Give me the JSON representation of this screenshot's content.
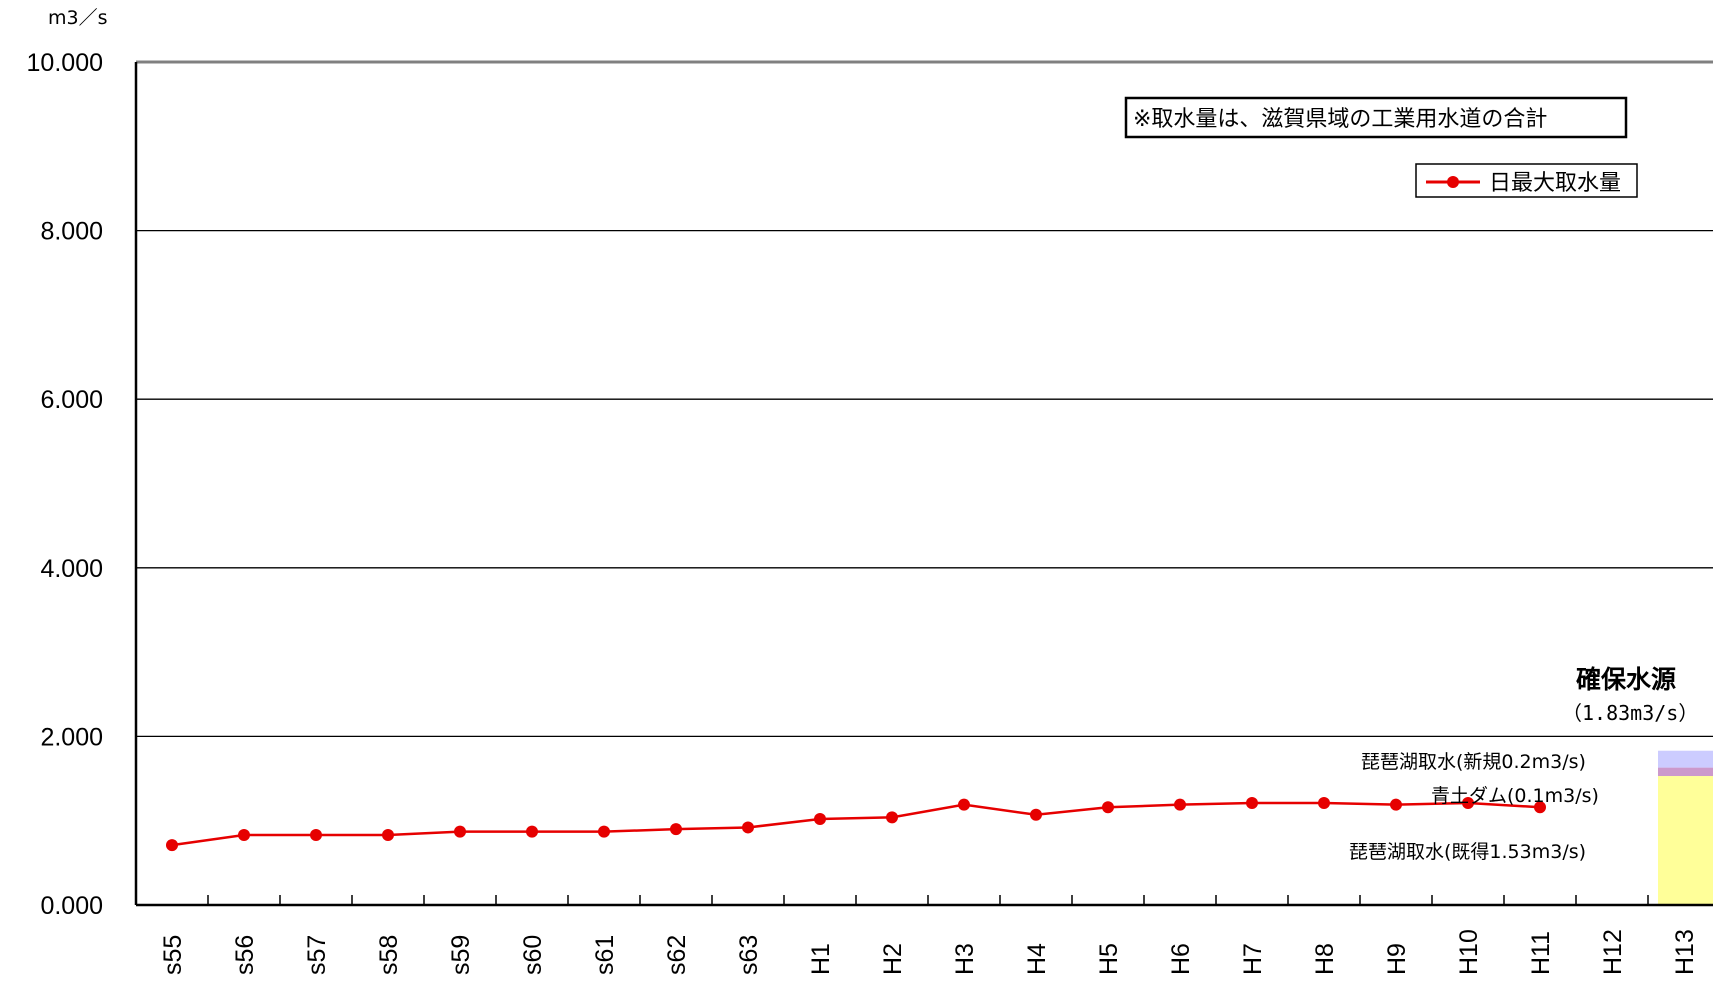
{
  "chart_data": {
    "type": "line",
    "unit_label": "m3／s",
    "ylim": [
      0,
      10
    ],
    "y_ticks": [
      "0.000",
      "2.000",
      "4.000",
      "6.000",
      "8.000",
      "10.000"
    ],
    "categories": [
      "s55",
      "s56",
      "s57",
      "s58",
      "s59",
      "s60",
      "s61",
      "s62",
      "s63",
      "H1",
      "H2",
      "H3",
      "H4",
      "H5",
      "H6",
      "H7",
      "H8",
      "H9",
      "H10",
      "H11",
      "H12",
      "H13"
    ],
    "series": [
      {
        "name": "日最大取水量",
        "color": "#e60000",
        "values": [
          0.71,
          0.83,
          0.83,
          0.83,
          0.87,
          0.87,
          0.87,
          0.9,
          0.92,
          1.02,
          1.04,
          1.19,
          1.07,
          1.16,
          1.19,
          1.21,
          1.21,
          1.19,
          1.21,
          1.16,
          null,
          null
        ]
      }
    ],
    "note": "※取水量は、滋賀県域の工業用水道の合計",
    "grid": true,
    "legend_position": "top-right",
    "secured_source": {
      "title": "確保水源",
      "total": "（1.83m3/s）",
      "category": "H13",
      "segments": [
        {
          "label": "琵琶湖取水(既得1.53m3/s)",
          "value": 1.53,
          "color": "#ffff99"
        },
        {
          "label": "青土ダム(0.1m3/s)",
          "value": 0.1,
          "color": "#cc99cc"
        },
        {
          "label": "琵琶湖取水(新規0.2m3/s)",
          "value": 0.2,
          "color": "#ccccff"
        }
      ]
    }
  }
}
